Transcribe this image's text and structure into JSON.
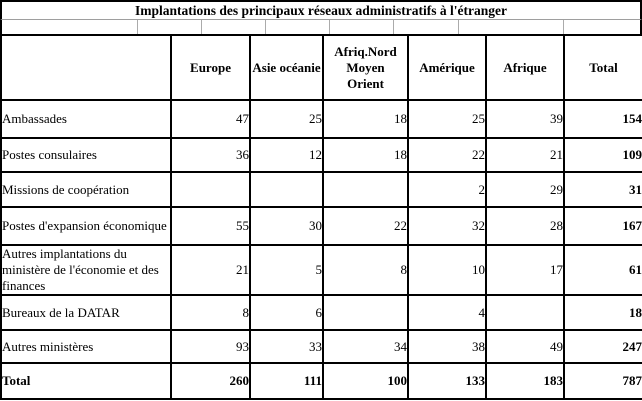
{
  "title": "Implantations des principaux réseaux administratifs à l'étranger",
  "table": {
    "col_headers": [
      "Europe",
      "Asie océanie",
      "Afriq.Nord\nMoyen\nOrient",
      "Amérique",
      "Afrique",
      "Total"
    ],
    "rows": [
      {
        "label": "Ambassades",
        "values": [
          "47",
          "25",
          "18",
          "25",
          "39"
        ],
        "total": "154",
        "is_total_row": false
      },
      {
        "label": "Postes consulaires",
        "values": [
          "36",
          "12",
          "18",
          "22",
          "21"
        ],
        "total": "109",
        "is_total_row": false
      },
      {
        "label": "Missions de coopération",
        "values": [
          "",
          "",
          "",
          "2",
          "29"
        ],
        "total": "31",
        "is_total_row": false
      },
      {
        "label": "Postes d'expansion économique",
        "values": [
          "55",
          "30",
          "22",
          "32",
          "28"
        ],
        "total": "167",
        "is_total_row": false
      },
      {
        "label": "Autres implantations du ministère de l'économie et des finances",
        "values": [
          "21",
          "5",
          "8",
          "10",
          "17"
        ],
        "total": "61",
        "is_total_row": false
      },
      {
        "label": "Bureaux de la DATAR",
        "values": [
          "8",
          "6",
          "",
          "4",
          ""
        ],
        "total": "18",
        "is_total_row": false
      },
      {
        "label": "Autres ministères",
        "values": [
          "93",
          "33",
          "34",
          "38",
          "49"
        ],
        "total": "247",
        "is_total_row": false
      },
      {
        "label": "Total",
        "values": [
          "260",
          "111",
          "100",
          "133",
          "183"
        ],
        "total": "787",
        "is_total_row": true
      }
    ]
  },
  "colors": {
    "grid_line": "#000000",
    "spacer_line": "#ababab",
    "text": "#000000",
    "background": "#ffffff"
  }
}
